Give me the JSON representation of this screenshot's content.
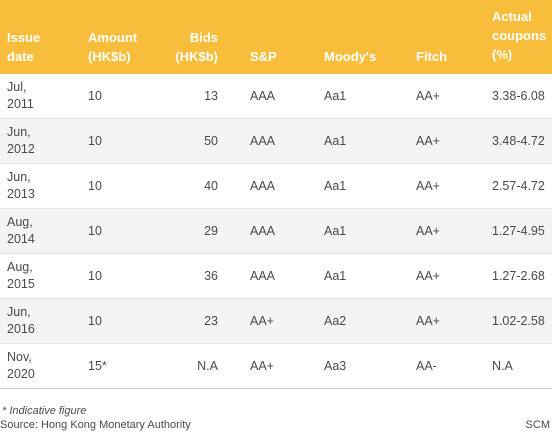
{
  "headers": {
    "issue_date": [
      "Issue",
      "date"
    ],
    "amount": [
      "Amount",
      "(HK$b)"
    ],
    "bids": [
      "Bids",
      "(HK$b)"
    ],
    "sp": "S&P",
    "moodys": "Moody's",
    "fitch": "Fitch",
    "coupons": [
      "Actual",
      "coupons",
      "(%)"
    ]
  },
  "rows": [
    {
      "date": [
        "Jul,",
        "2011"
      ],
      "amount": "10",
      "bids": "13",
      "sp": "AAA",
      "moodys": "Aa1",
      "fitch": "AA+",
      "coupons": "3.38-6.08"
    },
    {
      "date": [
        "Jun,",
        "2012"
      ],
      "amount": "10",
      "bids": "50",
      "sp": "AAA",
      "moodys": "Aa1",
      "fitch": "AA+",
      "coupons": "3.48-4.72"
    },
    {
      "date": [
        "Jun,",
        "2013"
      ],
      "amount": "10",
      "bids": "40",
      "sp": "AAA",
      "moodys": "Aa1",
      "fitch": "AA+",
      "coupons": "2.57-4.72"
    },
    {
      "date": [
        "Aug,",
        "2014"
      ],
      "amount": "10",
      "bids": "29",
      "sp": "AAA",
      "moodys": "Aa1",
      "fitch": "AA+",
      "coupons": "1.27-4.95"
    },
    {
      "date": [
        "Aug,",
        "2015"
      ],
      "amount": "10",
      "bids": "36",
      "sp": "AAA",
      "moodys": "Aa1",
      "fitch": "AA+",
      "coupons": "1.27-2.68"
    },
    {
      "date": [
        "Jun,",
        "2016"
      ],
      "amount": "10",
      "bids": "23",
      "sp": "AA+",
      "moodys": "Aa2",
      "fitch": "AA+",
      "coupons": "1.02-2.58"
    },
    {
      "date": [
        "Nov,",
        "2020"
      ],
      "amount": "15*",
      "bids": "N.A",
      "sp": "AA+",
      "moodys": "Aa3",
      "fitch": "AA-",
      "coupons": "N.A"
    }
  ],
  "footer": {
    "note": "* Indicative figure",
    "source": "Source: Hong Kong Monetary Authority",
    "credit": "SCM"
  }
}
